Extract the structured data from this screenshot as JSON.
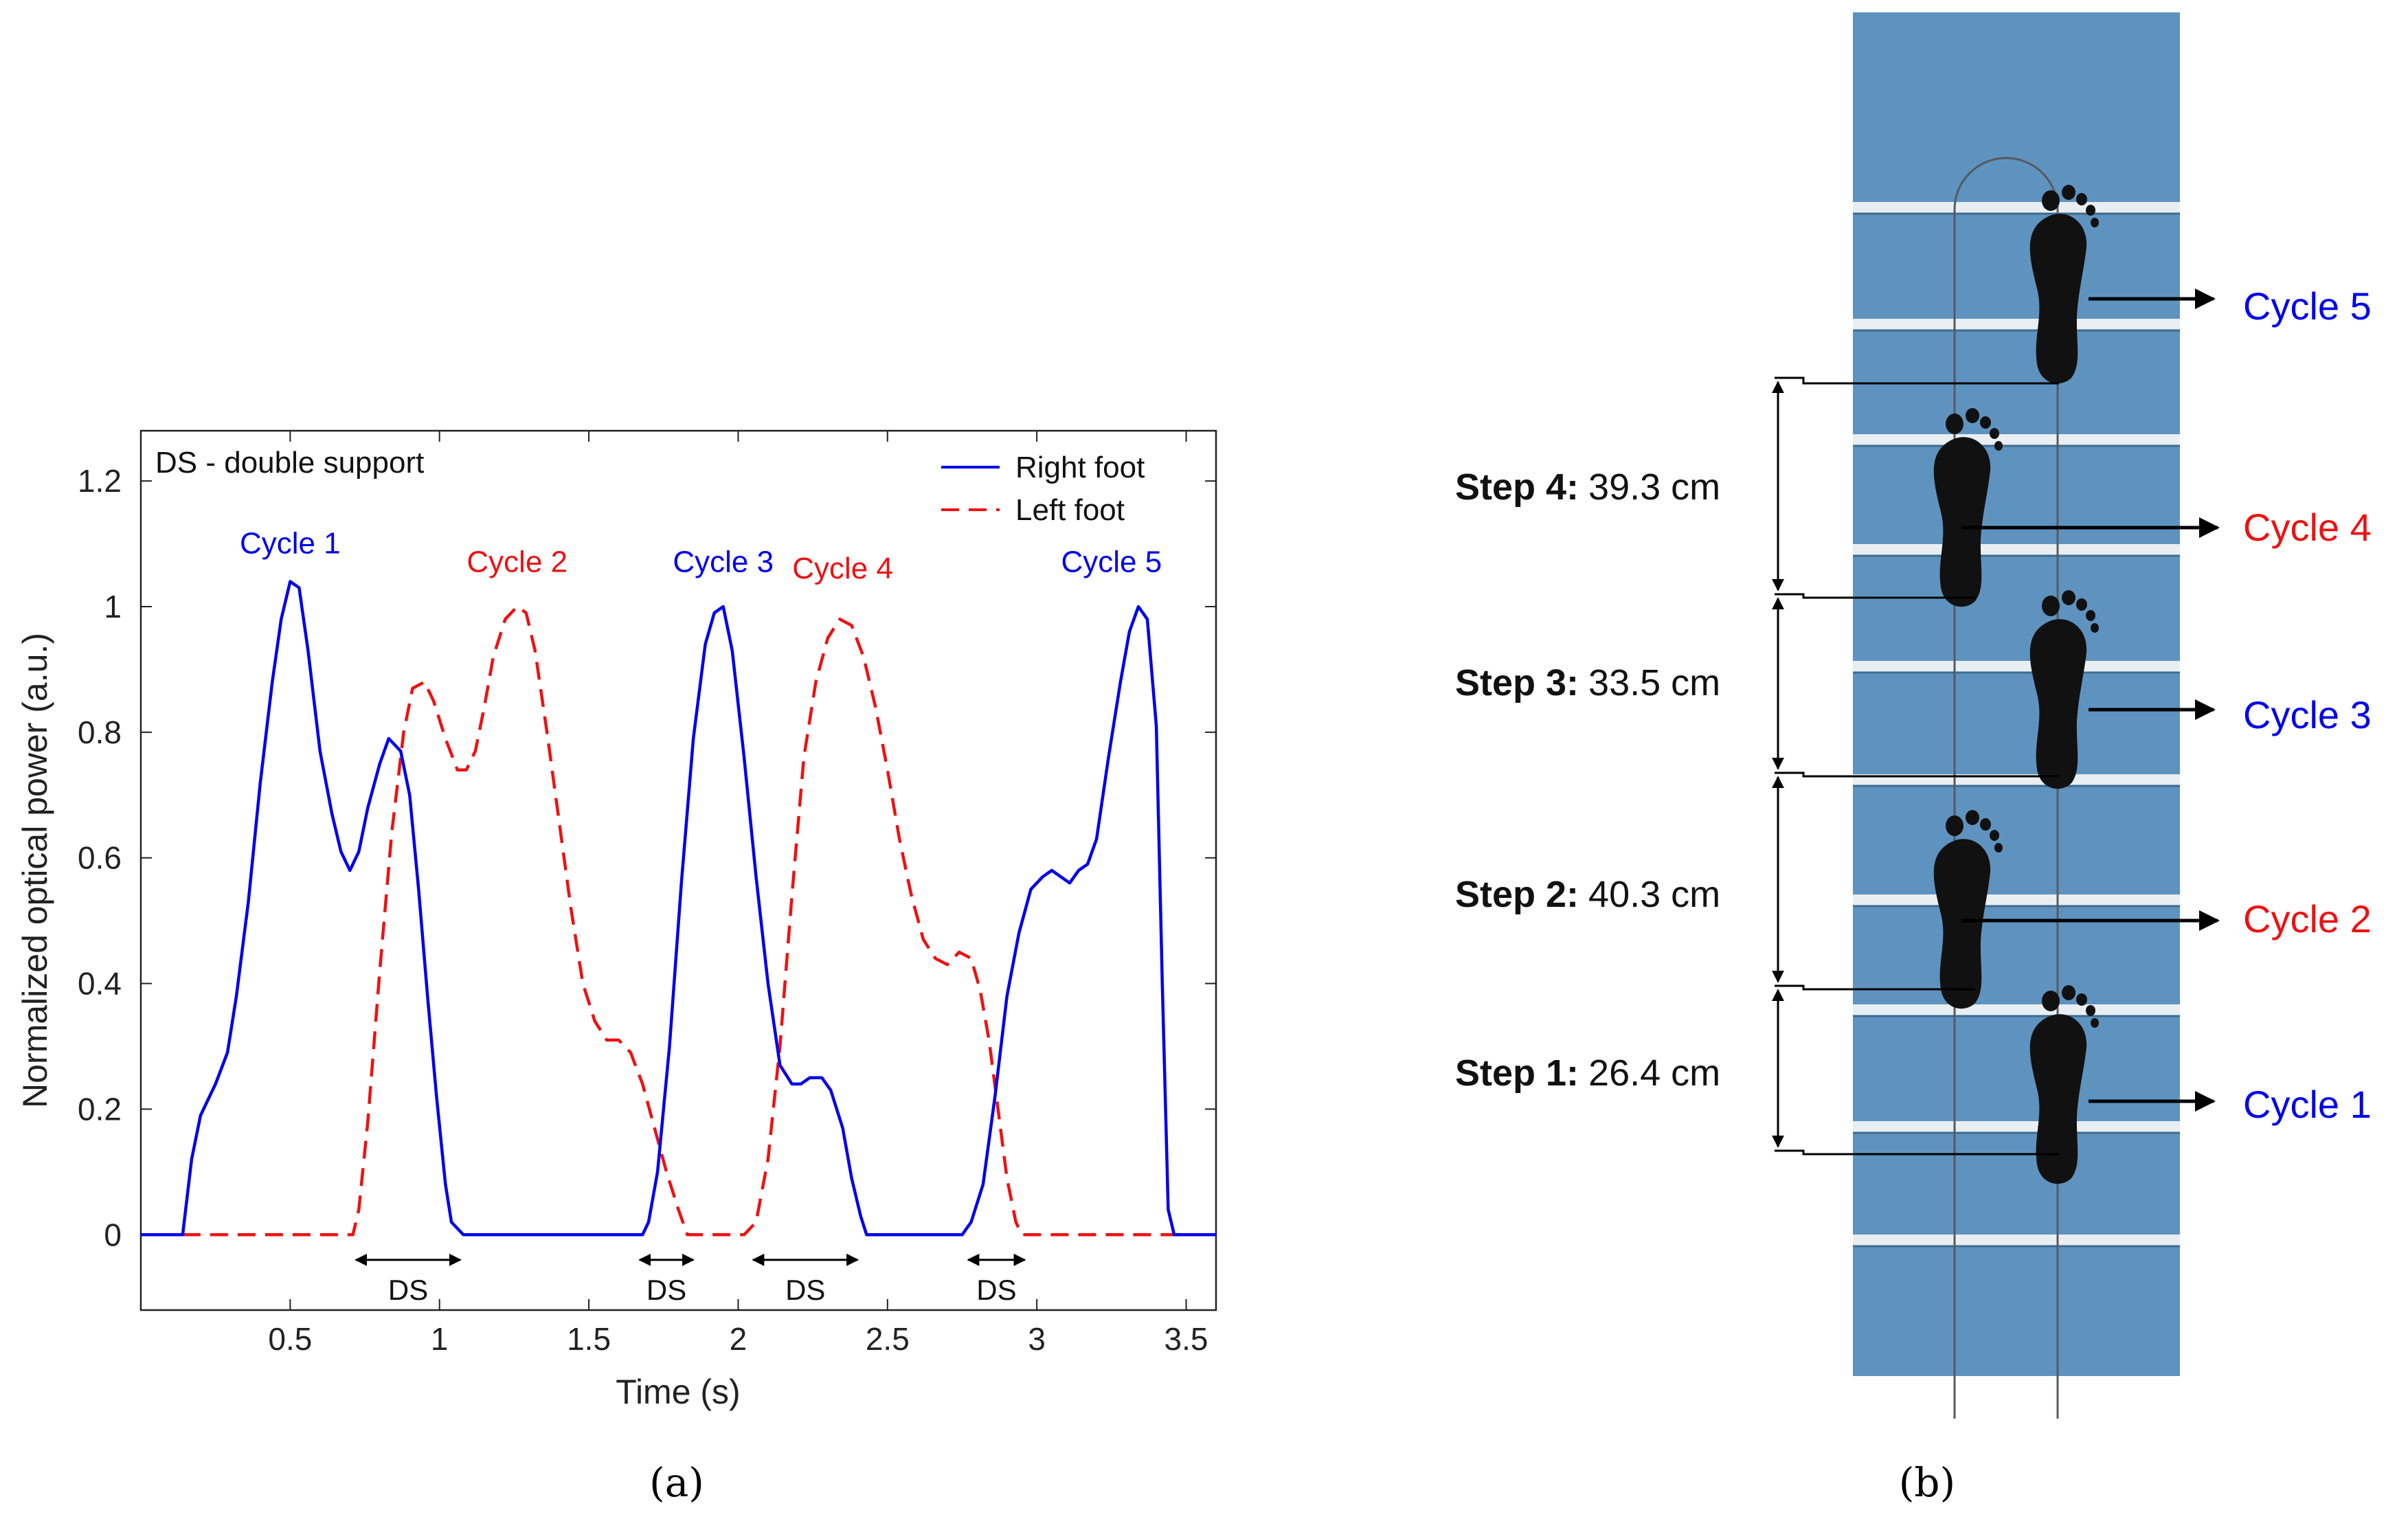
{
  "colors": {
    "right": "#0000ee",
    "left": "#ee1111",
    "floor": "#5f93bf",
    "rail": "#e8eef2"
  },
  "chart_data": {
    "type": "line",
    "title": "",
    "note": "DS - double support",
    "xlabel": "Time (s)",
    "ylabel": "Normalized optical power (a.u.)",
    "xlim": [
      0.0,
      3.6
    ],
    "ylim": [
      -0.12,
      1.28
    ],
    "x_ticks": [
      0.5,
      1,
      1.5,
      2,
      2.5,
      3,
      3.5
    ],
    "x_tick_labels": [
      "0.5",
      "1",
      "1.5",
      "2",
      "2.5",
      "3",
      "3.5"
    ],
    "y_ticks": [
      0,
      0.2,
      0.4,
      0.6,
      0.8,
      1,
      1.2
    ],
    "y_tick_labels": [
      "0",
      "0.2",
      "0.4",
      "0.6",
      "0.8",
      "1",
      "1.2"
    ],
    "legend": [
      "Right foot",
      "Left foot"
    ],
    "legend_position": "top-right",
    "series": [
      {
        "name": "Right foot",
        "style": "solid",
        "color": "#0000ee",
        "points": [
          [
            0.0,
            0
          ],
          [
            0.14,
            0
          ],
          [
            0.17,
            0.12
          ],
          [
            0.2,
            0.19
          ],
          [
            0.25,
            0.24
          ],
          [
            0.29,
            0.29
          ],
          [
            0.32,
            0.38
          ],
          [
            0.36,
            0.53
          ],
          [
            0.4,
            0.72
          ],
          [
            0.44,
            0.88
          ],
          [
            0.47,
            0.98
          ],
          [
            0.5,
            1.04
          ],
          [
            0.53,
            1.03
          ],
          [
            0.56,
            0.93
          ],
          [
            0.6,
            0.77
          ],
          [
            0.64,
            0.67
          ],
          [
            0.67,
            0.61
          ],
          [
            0.7,
            0.58
          ],
          [
            0.73,
            0.61
          ],
          [
            0.76,
            0.68
          ],
          [
            0.8,
            0.75
          ],
          [
            0.83,
            0.79
          ],
          [
            0.87,
            0.77
          ],
          [
            0.9,
            0.7
          ],
          [
            0.93,
            0.55
          ],
          [
            0.96,
            0.38
          ],
          [
            0.99,
            0.22
          ],
          [
            1.02,
            0.08
          ],
          [
            1.04,
            0.02
          ],
          [
            1.08,
            0
          ],
          [
            1.68,
            0
          ],
          [
            1.7,
            0.02
          ],
          [
            1.73,
            0.1
          ],
          [
            1.77,
            0.3
          ],
          [
            1.81,
            0.56
          ],
          [
            1.85,
            0.79
          ],
          [
            1.89,
            0.94
          ],
          [
            1.92,
            0.99
          ],
          [
            1.95,
            1.0
          ],
          [
            1.98,
            0.93
          ],
          [
            2.02,
            0.76
          ],
          [
            2.06,
            0.57
          ],
          [
            2.1,
            0.4
          ],
          [
            2.14,
            0.27
          ],
          [
            2.18,
            0.24
          ],
          [
            2.21,
            0.24
          ],
          [
            2.24,
            0.25
          ],
          [
            2.28,
            0.25
          ],
          [
            2.31,
            0.23
          ],
          [
            2.35,
            0.17
          ],
          [
            2.38,
            0.09
          ],
          [
            2.41,
            0.03
          ],
          [
            2.43,
            0
          ],
          [
            2.75,
            0
          ],
          [
            2.78,
            0.02
          ],
          [
            2.82,
            0.08
          ],
          [
            2.86,
            0.22
          ],
          [
            2.9,
            0.38
          ],
          [
            2.94,
            0.48
          ],
          [
            2.98,
            0.55
          ],
          [
            3.02,
            0.57
          ],
          [
            3.05,
            0.58
          ],
          [
            3.08,
            0.57
          ],
          [
            3.11,
            0.56
          ],
          [
            3.14,
            0.58
          ],
          [
            3.17,
            0.59
          ],
          [
            3.2,
            0.63
          ],
          [
            3.24,
            0.76
          ],
          [
            3.28,
            0.88
          ],
          [
            3.31,
            0.96
          ],
          [
            3.34,
            1.0
          ],
          [
            3.37,
            0.98
          ],
          [
            3.4,
            0.81
          ],
          [
            3.42,
            0.4
          ],
          [
            3.44,
            0.04
          ],
          [
            3.46,
            0
          ],
          [
            3.6,
            0
          ]
        ]
      },
      {
        "name": "Left foot",
        "style": "dashed",
        "color": "#ee1111",
        "points": [
          [
            0.14,
            0
          ],
          [
            0.71,
            0
          ],
          [
            0.73,
            0.04
          ],
          [
            0.76,
            0.18
          ],
          [
            0.8,
            0.42
          ],
          [
            0.84,
            0.64
          ],
          [
            0.88,
            0.8
          ],
          [
            0.91,
            0.87
          ],
          [
            0.95,
            0.88
          ],
          [
            0.98,
            0.85
          ],
          [
            1.02,
            0.79
          ],
          [
            1.06,
            0.74
          ],
          [
            1.09,
            0.74
          ],
          [
            1.12,
            0.77
          ],
          [
            1.15,
            0.84
          ],
          [
            1.18,
            0.92
          ],
          [
            1.22,
            0.98
          ],
          [
            1.26,
            1.0
          ],
          [
            1.29,
            0.99
          ],
          [
            1.32,
            0.93
          ],
          [
            1.36,
            0.8
          ],
          [
            1.4,
            0.66
          ],
          [
            1.44,
            0.52
          ],
          [
            1.48,
            0.4
          ],
          [
            1.52,
            0.34
          ],
          [
            1.56,
            0.31
          ],
          [
            1.6,
            0.31
          ],
          [
            1.64,
            0.29
          ],
          [
            1.68,
            0.24
          ],
          [
            1.72,
            0.17
          ],
          [
            1.76,
            0.1
          ],
          [
            1.8,
            0.04
          ],
          [
            1.83,
            0
          ],
          [
            2.02,
            0
          ],
          [
            2.06,
            0.02
          ],
          [
            2.1,
            0.12
          ],
          [
            2.14,
            0.3
          ],
          [
            2.18,
            0.54
          ],
          [
            2.22,
            0.76
          ],
          [
            2.26,
            0.88
          ],
          [
            2.3,
            0.95
          ],
          [
            2.34,
            0.98
          ],
          [
            2.38,
            0.97
          ],
          [
            2.42,
            0.92
          ],
          [
            2.46,
            0.84
          ],
          [
            2.5,
            0.74
          ],
          [
            2.54,
            0.63
          ],
          [
            2.58,
            0.54
          ],
          [
            2.62,
            0.47
          ],
          [
            2.66,
            0.44
          ],
          [
            2.7,
            0.43
          ],
          [
            2.74,
            0.45
          ],
          [
            2.78,
            0.44
          ],
          [
            2.81,
            0.39
          ],
          [
            2.84,
            0.31
          ],
          [
            2.87,
            0.2
          ],
          [
            2.9,
            0.09
          ],
          [
            2.93,
            0.02
          ],
          [
            2.95,
            0
          ],
          [
            3.46,
            0
          ]
        ]
      }
    ],
    "cycles": [
      {
        "label": "Cycle 1",
        "foot": "right",
        "x": 0.5,
        "y": 1.085
      },
      {
        "label": "Cycle 2",
        "foot": "left",
        "x": 1.26,
        "y": 1.055
      },
      {
        "label": "Cycle 3",
        "foot": "right",
        "x": 1.95,
        "y": 1.055
      },
      {
        "label": "Cycle 4",
        "foot": "left",
        "x": 2.35,
        "y": 1.045
      },
      {
        "label": "Cycle 5",
        "foot": "right",
        "x": 3.25,
        "y": 1.055
      }
    ],
    "double_support": [
      {
        "label": "DS",
        "start": 0.72,
        "end": 1.07
      },
      {
        "label": "DS",
        "start": 1.67,
        "end": 1.85
      },
      {
        "label": "DS",
        "start": 2.05,
        "end": 2.4
      },
      {
        "label": "DS",
        "start": 2.77,
        "end": 2.96
      }
    ]
  },
  "panels": {
    "a": "(a)",
    "b": "(b)"
  },
  "walkway": {
    "steps": [
      {
        "name": "Step 4:",
        "value": "39.3 cm"
      },
      {
        "name": "Step 3:",
        "value": "33.5 cm"
      },
      {
        "name": "Step 2:",
        "value": "40.3 cm"
      },
      {
        "name": "Step 1:",
        "value": "26.4 cm"
      }
    ],
    "cycles": [
      {
        "label": "Cycle 5",
        "foot": "right"
      },
      {
        "label": "Cycle 4",
        "foot": "left"
      },
      {
        "label": "Cycle 3",
        "foot": "right"
      },
      {
        "label": "Cycle 2",
        "foot": "left"
      },
      {
        "label": "Cycle 1",
        "foot": "right"
      }
    ]
  }
}
